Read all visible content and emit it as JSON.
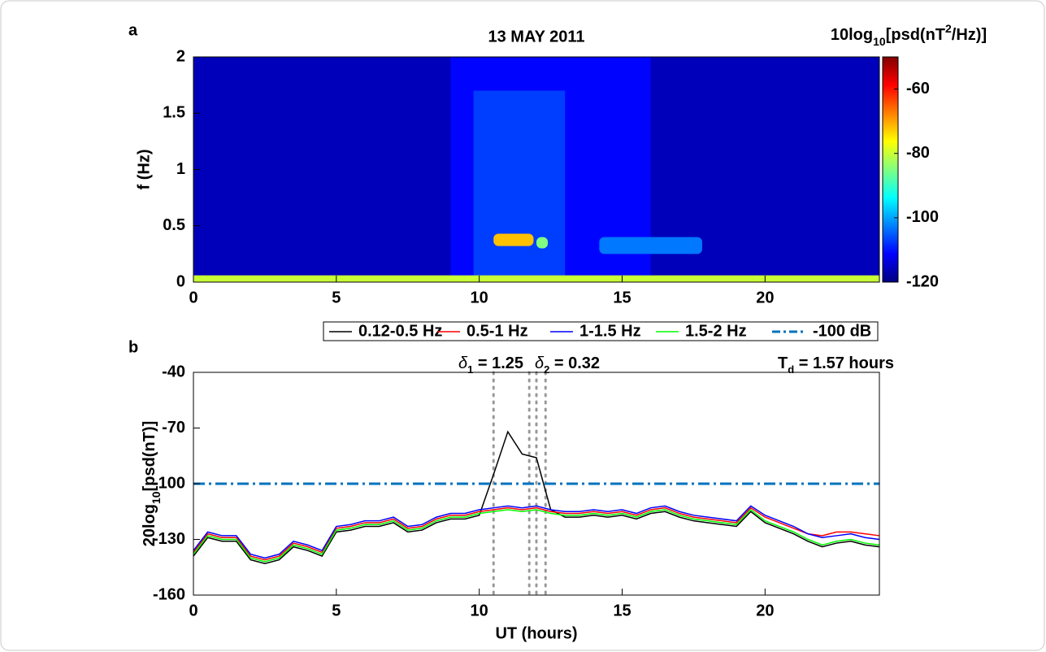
{
  "chart_data": [
    {
      "type": "heatmap",
      "panel": "a",
      "title": "13 MAY 2011",
      "ylabel": "f (Hz)",
      "colorbar_label": [
        {
          "text": "10log"
        },
        {
          "text": "10",
          "sub": true
        },
        {
          "text": "[psd(nT"
        },
        {
          "text": "2",
          "sup": true
        },
        {
          "text": "/Hz)]"
        }
      ],
      "colormap": "jet",
      "xlim": [
        0,
        24
      ],
      "xticks": [
        0,
        5,
        10,
        15,
        20
      ],
      "ylim": [
        0,
        2
      ],
      "yticks": [
        0,
        0.5,
        1,
        1.5,
        2
      ],
      "clim": [
        -120,
        -50
      ],
      "cticks": [
        -120,
        -100,
        -80,
        -60
      ],
      "cells": [
        {
          "x": [
            0,
            24
          ],
          "f": [
            0,
            2
          ],
          "value": -116
        },
        {
          "x": [
            9,
            16
          ],
          "f": [
            0.05,
            2
          ],
          "value": -111
        },
        {
          "x": [
            9.8,
            13
          ],
          "f": [
            0.05,
            1.7
          ],
          "value": -107
        },
        {
          "x": [
            0,
            24
          ],
          "f": [
            0,
            0.06
          ],
          "value": -80
        },
        {
          "x": [
            10.5,
            11.9
          ],
          "f": [
            0.32,
            0.43
          ],
          "value": -72
        },
        {
          "x": [
            12,
            12.4
          ],
          "f": [
            0.3,
            0.4
          ],
          "value": -85
        },
        {
          "x": [
            14.2,
            17.8
          ],
          "f": [
            0.25,
            0.4
          ],
          "value": -103
        }
      ]
    },
    {
      "type": "line",
      "panel": "b",
      "xlabel": "UT (hours)",
      "ylabel": [
        {
          "text": "20log"
        },
        {
          "text": "10",
          "sub": true
        },
        {
          "text": "[psd(nT)]"
        }
      ],
      "xlim": [
        0,
        24
      ],
      "xticks": [
        0,
        5,
        10,
        15,
        20
      ],
      "ylim": [
        -160,
        -40
      ],
      "yticks": [
        -160,
        -130,
        -100,
        -70,
        -40
      ],
      "x": [
        0,
        0.5,
        1,
        1.5,
        2,
        2.5,
        3,
        3.5,
        4,
        4.5,
        5,
        5.5,
        6,
        6.5,
        7,
        7.5,
        8,
        8.5,
        9,
        9.5,
        10,
        10.5,
        11,
        11.5,
        12,
        12.5,
        13,
        13.5,
        14,
        14.5,
        15,
        15.5,
        16,
        16.5,
        17,
        17.5,
        18,
        18.5,
        19,
        19.5,
        20,
        20.5,
        21,
        21.5,
        22,
        22.5,
        23,
        23.5,
        24
      ],
      "series": [
        {
          "name": "0.12-0.5 Hz",
          "color": "#000000",
          "values": [
            -139,
            -129,
            -131,
            -131,
            -141,
            -143,
            -141,
            -134,
            -136,
            -139,
            -126,
            -125,
            -123,
            -123,
            -121,
            -126,
            -125,
            -121,
            -119,
            -119,
            -117,
            -95,
            -72,
            -84,
            -86,
            -114,
            -118,
            -118,
            -117,
            -118,
            -117,
            -119,
            -116,
            -115,
            -118,
            -120,
            -121,
            -122,
            -123,
            -115,
            -121,
            -124,
            -127,
            -131,
            -134,
            -132,
            -131,
            -133,
            -134
          ]
        },
        {
          "name": "0.5-1 Hz",
          "color": "#ff0000",
          "values": [
            -137,
            -127,
            -129,
            -129,
            -139,
            -141,
            -139,
            -132,
            -134,
            -137,
            -124,
            -123,
            -121,
            -121,
            -119,
            -124,
            -123,
            -119,
            -117,
            -117,
            -115,
            -114,
            -113,
            -114,
            -113,
            -115,
            -116,
            -116,
            -115,
            -116,
            -115,
            -117,
            -114,
            -113,
            -116,
            -118,
            -119,
            -120,
            -121,
            -113,
            -118,
            -121,
            -124,
            -127,
            -128,
            -126,
            -126,
            -127,
            -128
          ]
        },
        {
          "name": "1-1.5 Hz",
          "color": "#0000ff",
          "values": [
            -136,
            -126,
            -128,
            -128,
            -138,
            -140,
            -138,
            -131,
            -133,
            -136,
            -123,
            -122,
            -120,
            -120,
            -118,
            -123,
            -122,
            -118,
            -116,
            -116,
            -114,
            -113,
            -112,
            -113,
            -112,
            -114,
            -115,
            -115,
            -114,
            -115,
            -114,
            -116,
            -113,
            -112,
            -115,
            -117,
            -118,
            -119,
            -120,
            -112,
            -117,
            -120,
            -123,
            -127,
            -129,
            -128,
            -127,
            -129,
            -130
          ]
        },
        {
          "name": "1.5-2 Hz",
          "color": "#00ff00",
          "values": [
            -138,
            -128,
            -130,
            -130,
            -140,
            -142,
            -140,
            -133,
            -135,
            -138,
            -125,
            -124,
            -122,
            -122,
            -120,
            -125,
            -124,
            -120,
            -118,
            -118,
            -116,
            -115,
            -114,
            -115,
            -114,
            -116,
            -117,
            -117,
            -116,
            -117,
            -116,
            -118,
            -115,
            -114,
            -117,
            -119,
            -120,
            -121,
            -122,
            -114,
            -120,
            -123,
            -126,
            -130,
            -133,
            -131,
            -130,
            -132,
            -133
          ]
        }
      ],
      "threshold": {
        "name": "-100 dB",
        "value": -100,
        "color": "#0072bd"
      },
      "markers": [
        10.5,
        11.75,
        12,
        12.32
      ],
      "annotations": [
        {
          "symbol": "δ",
          "subscript": "1",
          "text": " = 1.25"
        },
        {
          "symbol": "δ",
          "subscript": "2",
          "text": " = 0.32"
        },
        {
          "symbol": "T",
          "subscript": "d",
          "text": " = 1.57 hours"
        }
      ]
    }
  ]
}
